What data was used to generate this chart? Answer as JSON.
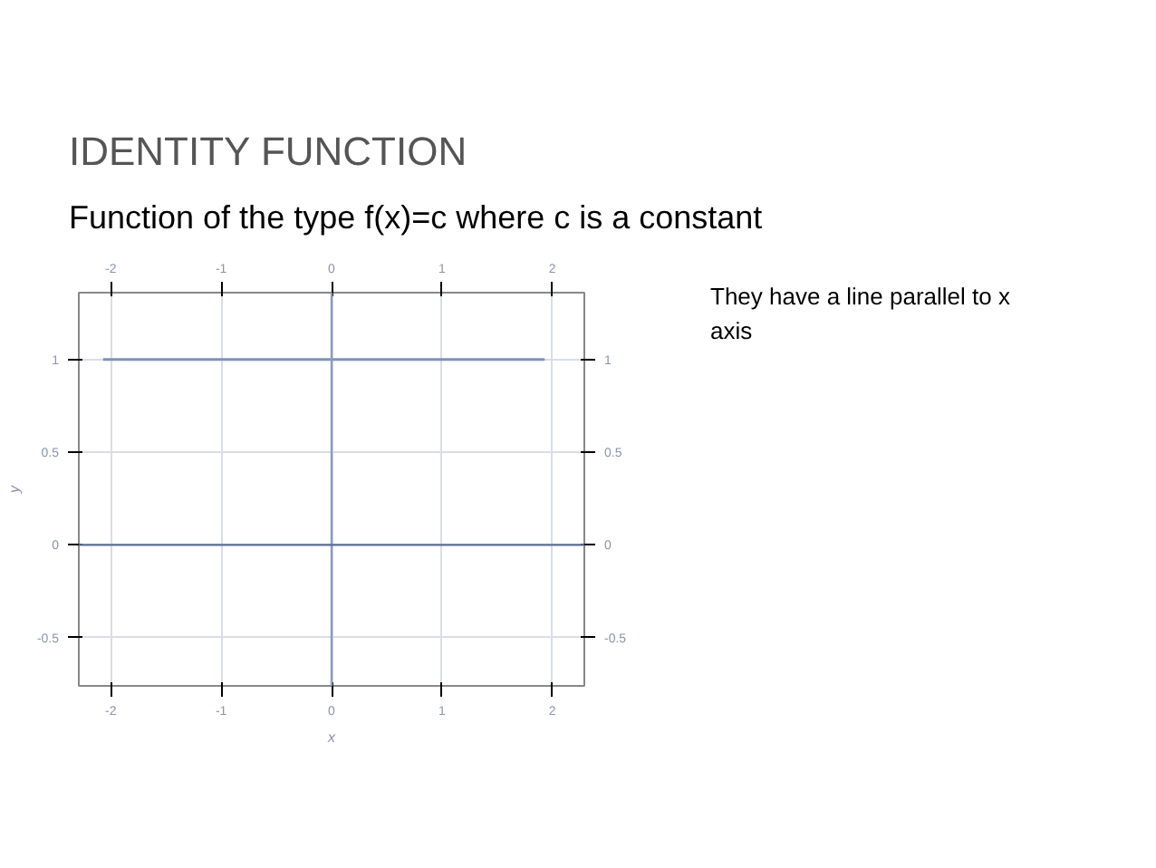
{
  "chart_data": {
    "type": "line",
    "title": "IDENTITY FUNCTION",
    "subtitle": "Function of the type f(x)=c where c is a constant",
    "xlabel": "x",
    "ylabel": "y",
    "annotations": [
      "They have a line parallel to x axis"
    ],
    "series": [
      {
        "color": "#7f93b8",
        "x": [
          -2.07,
          1.93
        ],
        "values": [
          1,
          1
        ]
      }
    ],
    "xlim": [
      -2.29,
      2.29
    ],
    "xticks": [
      -2,
      -1,
      0,
      1,
      2
    ],
    "x2lim": [
      -2.29,
      2.29
    ],
    "x2ticks": [
      -2,
      -1,
      0,
      1,
      2
    ],
    "ylim": [
      -0.76,
      1.36
    ],
    "yticks": [
      -0.5,
      0,
      0.5,
      1
    ],
    "y2lim": [
      -0.76,
      1.36
    ],
    "y2ticks": [
      -0.5,
      0,
      0.5,
      1
    ],
    "ref_lines": [
      {
        "axis": "x",
        "value": 0,
        "color": "#8a9cc0"
      },
      {
        "axis": "y",
        "value": 0,
        "color": "#5f6f92"
      }
    ],
    "grid": true,
    "marker": "none",
    "line_style": "solid"
  }
}
